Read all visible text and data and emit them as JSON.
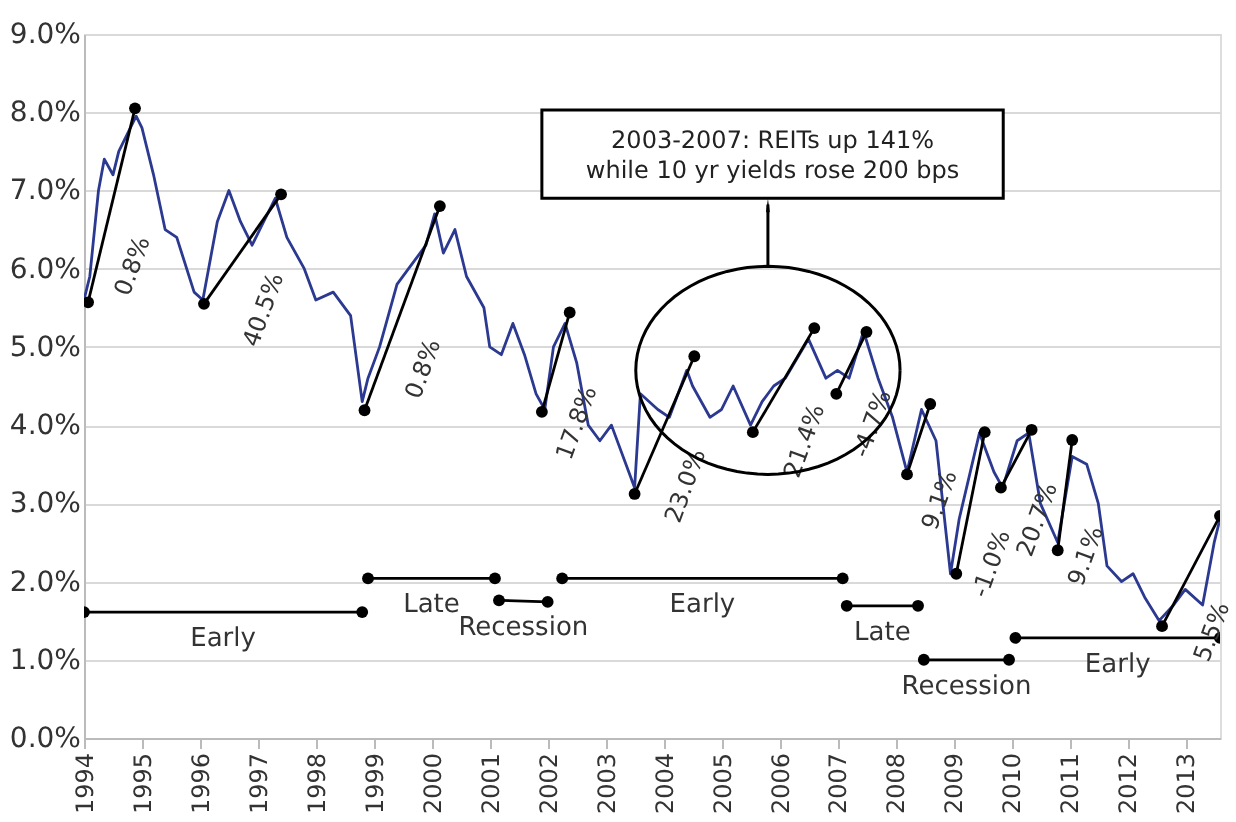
{
  "chart_data": {
    "type": "line",
    "xlim": [
      1994,
      2013.6
    ],
    "ylim": [
      0,
      9
    ],
    "xticks": [
      1994,
      1995,
      1996,
      1997,
      1998,
      1999,
      2000,
      2001,
      2002,
      2003,
      2004,
      2005,
      2006,
      2007,
      2008,
      2009,
      2010,
      2011,
      2012,
      2013
    ],
    "yticks": [
      {
        "value": 0,
        "label": "0.0%"
      },
      {
        "value": 1,
        "label": "1.0%"
      },
      {
        "value": 2,
        "label": "2.0%"
      },
      {
        "value": 3,
        "label": "3.0%"
      },
      {
        "value": 4,
        "label": "4.0%"
      },
      {
        "value": 5,
        "label": "5.0%"
      },
      {
        "value": 6,
        "label": "6.0%"
      },
      {
        "value": 7,
        "label": "7.0%"
      },
      {
        "value": 8,
        "label": "8.0%"
      },
      {
        "value": 9,
        "label": "9.0%"
      }
    ],
    "grid": "y",
    "series": [
      {
        "color": "#2b3990",
        "marker": "none",
        "x": [
          1994.0,
          1994.1,
          1994.25,
          1994.35,
          1994.5,
          1994.6,
          1994.8,
          1994.9,
          1995.0,
          1995.2,
          1995.4,
          1995.6,
          1995.9,
          1996.05,
          1996.3,
          1996.5,
          1996.7,
          1996.9,
          1997.1,
          1997.3,
          1997.5,
          1997.8,
          1998.0,
          1998.3,
          1998.6,
          1998.8,
          1998.9,
          1999.1,
          1999.4,
          1999.6,
          1999.9,
          2000.05,
          2000.2,
          2000.4,
          2000.6,
          2000.9,
          2001.0,
          2001.2,
          2001.4,
          2001.6,
          2001.8,
          2001.95,
          2002.1,
          2002.3,
          2002.5,
          2002.7,
          2002.9,
          2003.1,
          2003.4,
          2003.5,
          2003.6,
          2003.9,
          2004.1,
          2004.4,
          2004.5,
          2004.8,
          2005.0,
          2005.2,
          2005.5,
          2005.7,
          2005.9,
          2006.1,
          2006.5,
          2006.8,
          2007.0,
          2007.2,
          2007.45,
          2007.7,
          2007.95,
          2008.2,
          2008.45,
          2008.7,
          2008.95,
          2009.1,
          2009.45,
          2009.7,
          2009.85,
          2010.1,
          2010.3,
          2010.5,
          2010.8,
          2011.05,
          2011.3,
          2011.5,
          2011.65,
          2011.9,
          2012.1,
          2012.3,
          2012.55,
          2012.8,
          2013.0,
          2013.3,
          2013.5,
          2013.6
        ],
        "values": [
          5.6,
          5.9,
          7.0,
          7.4,
          7.2,
          7.5,
          7.8,
          7.95,
          7.8,
          7.2,
          6.5,
          6.4,
          5.7,
          5.6,
          6.6,
          7.0,
          6.6,
          6.3,
          6.6,
          6.9,
          6.4,
          6.0,
          5.6,
          5.7,
          5.4,
          4.3,
          4.6,
          5.0,
          5.8,
          6.0,
          6.3,
          6.7,
          6.2,
          6.5,
          5.9,
          5.5,
          5.0,
          4.9,
          5.3,
          4.9,
          4.4,
          4.2,
          5.0,
          5.3,
          4.8,
          4.0,
          3.8,
          4.0,
          3.4,
          3.2,
          4.4,
          4.2,
          4.1,
          4.7,
          4.5,
          4.1,
          4.2,
          4.5,
          4.0,
          4.3,
          4.5,
          4.6,
          5.1,
          4.6,
          4.7,
          4.6,
          5.2,
          4.6,
          4.1,
          3.4,
          4.2,
          3.8,
          2.1,
          2.8,
          3.9,
          3.4,
          3.2,
          3.8,
          3.9,
          3.0,
          2.5,
          3.6,
          3.5,
          3.0,
          2.2,
          2.0,
          2.1,
          1.8,
          1.5,
          1.7,
          1.9,
          1.7,
          2.5,
          2.8
        ]
      },
      {
        "color": "#000000",
        "marker": "circle",
        "x": [
          1994.07,
          1994.88
        ],
        "values": [
          5.57,
          8.05
        ]
      },
      {
        "color": "#000000",
        "marker": "circle",
        "x": [
          1996.07,
          1997.4
        ],
        "values": [
          5.55,
          6.95
        ]
      },
      {
        "color": "#000000",
        "marker": "circle",
        "x": [
          1998.84,
          2000.14
        ],
        "values": [
          4.19,
          6.8
        ]
      },
      {
        "color": "#000000",
        "marker": "circle",
        "x": [
          2001.9,
          2002.38
        ],
        "values": [
          4.17,
          5.44
        ]
      },
      {
        "color": "#000000",
        "marker": "circle",
        "x": [
          2003.5,
          2004.53
        ],
        "values": [
          3.12,
          4.88
        ]
      },
      {
        "color": "#000000",
        "marker": "circle",
        "x": [
          2005.54,
          2006.6
        ],
        "values": [
          3.91,
          5.24
        ]
      },
      {
        "color": "#000000",
        "marker": "circle",
        "x": [
          2006.98,
          2007.5
        ],
        "values": [
          4.4,
          5.19
        ]
      },
      {
        "color": "#000000",
        "marker": "circle",
        "x": [
          2008.2,
          2008.6
        ],
        "values": [
          3.37,
          4.27
        ]
      },
      {
        "color": "#000000",
        "marker": "circle",
        "x": [
          2009.05,
          2009.54
        ],
        "values": [
          2.1,
          3.91
        ]
      },
      {
        "color": "#000000",
        "marker": "circle",
        "x": [
          2009.82,
          2010.35
        ],
        "values": [
          3.2,
          3.94
        ]
      },
      {
        "color": "#000000",
        "marker": "circle",
        "x": [
          2010.8,
          2011.05
        ],
        "values": [
          2.4,
          3.81
        ]
      },
      {
        "color": "#000000",
        "marker": "circle",
        "x": [
          2012.6,
          2013.6
        ],
        "values": [
          1.43,
          2.84
        ]
      },
      {
        "name": "Early",
        "color": "#000000",
        "marker": "circle",
        "x": [
          1994.0,
          1998.8
        ],
        "values": [
          1.61,
          1.61
        ]
      },
      {
        "name": "Late",
        "color": "#000000",
        "marker": "circle",
        "x": [
          1998.9,
          2001.09
        ],
        "values": [
          2.04,
          2.04
        ]
      },
      {
        "name": "Recession",
        "color": "#000000",
        "marker": "circle",
        "x": [
          2001.16,
          2002.0
        ],
        "values": [
          1.76,
          1.74
        ]
      },
      {
        "name": "Early",
        "color": "#000000",
        "marker": "circle",
        "x": [
          2002.25,
          2007.09
        ],
        "values": [
          2.04,
          2.04
        ]
      },
      {
        "name": "Late",
        "color": "#000000",
        "marker": "circle",
        "x": [
          2007.16,
          2008.39
        ],
        "values": [
          1.69,
          1.69
        ]
      },
      {
        "name": "Recession",
        "color": "#000000",
        "marker": "circle",
        "x": [
          2008.49,
          2009.96
        ],
        "values": [
          1.0,
          1.0
        ]
      },
      {
        "name": "Early",
        "color": "#000000",
        "marker": "circle",
        "x": [
          2010.07,
          2013.6
        ],
        "values": [
          1.28,
          1.28
        ]
      }
    ],
    "annotations": [
      "2003-2007: REITs up 141%\nwhile 10 yr yields rose 200 bps",
      {
        "text": "0.8%",
        "x": 1994.475,
        "y": 6.81
      },
      {
        "text": "40.5%",
        "x": 1996.735,
        "y": 6.25
      },
      {
        "text": "0.8%",
        "x": 1999.49,
        "y": 5.495
      },
      {
        "text": "17.8%",
        "x": 2002.14,
        "y": 4.805
      },
      {
        "text": "23.0%",
        "x": 2004.015,
        "y": 4.0
      },
      {
        "text": "21.4%",
        "x": 2006.07,
        "y": 4.575
      },
      {
        "text": "-4.7%",
        "x": 2007.24,
        "y": 4.795
      },
      {
        "text": "9.1%",
        "x": 2008.4,
        "y": 3.82
      },
      {
        "text": "-1.0%",
        "x": 2009.295,
        "y": 3.005
      },
      {
        "text": "20.7%",
        "x": 2010.085,
        "y": 3.57
      },
      {
        "text": "9.1%",
        "x": 2010.925,
        "y": 3.105
      },
      {
        "text": "5.5%",
        "x": 2013.1,
        "y": 2.135
      }
    ]
  }
}
